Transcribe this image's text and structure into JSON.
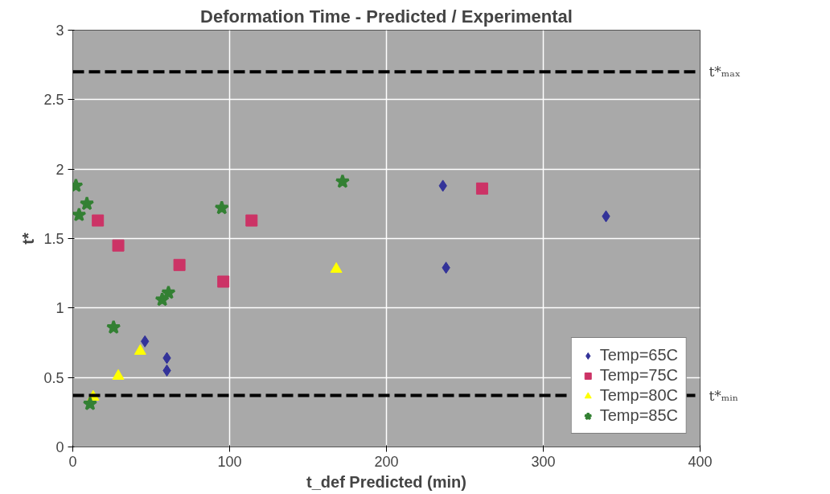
{
  "chart_data": {
    "type": "scatter",
    "title": "Deformation Time - Predicted / Experimental",
    "xlabel": "t_def Predicted (min)",
    "ylabel": "t*",
    "xlim": [
      0,
      400
    ],
    "xticks": [
      0,
      100,
      200,
      300,
      400
    ],
    "ylim": [
      0,
      3
    ],
    "yticks": [
      0,
      0.5,
      1,
      1.5,
      2,
      2.5,
      3
    ],
    "grid": true,
    "legend": "bottom right",
    "series": [
      {
        "name": "Temp=65C",
        "color": "#333399",
        "marker": "diamond",
        "x": [
          236,
          238,
          340,
          46,
          60,
          60
        ],
        "values": [
          1.88,
          1.29,
          1.66,
          0.76,
          0.64,
          0.55
        ]
      },
      {
        "name": "Temp=75C",
        "color": "#cc3366",
        "marker": "square",
        "x": [
          261,
          16,
          29,
          68,
          96,
          114
        ],
        "values": [
          1.86,
          1.63,
          1.45,
          1.31,
          1.19,
          1.63
        ]
      },
      {
        "name": "Temp=80C",
        "color": "#ffff00",
        "marker": "triangle",
        "x": [
          168,
          43,
          29,
          13
        ],
        "values": [
          1.28,
          0.69,
          0.51,
          0.36
        ]
      },
      {
        "name": "Temp=85C",
        "color": "#338033",
        "marker": "star",
        "x": [
          2,
          9,
          4,
          95,
          172,
          57,
          61,
          26,
          11
        ],
        "values": [
          1.88,
          1.75,
          1.67,
          1.72,
          1.91,
          1.06,
          1.11,
          0.86,
          0.31
        ]
      }
    ],
    "ref_lines": [
      {
        "axis": "y",
        "value": 2.7,
        "label": "t*ₘₐₓ",
        "color": "#000000",
        "line_style": "dashed"
      },
      {
        "axis": "y",
        "value": 0.37,
        "label": "t*ₘᵢₙ",
        "color": "#000000",
        "line_style": "dashed"
      }
    ]
  }
}
